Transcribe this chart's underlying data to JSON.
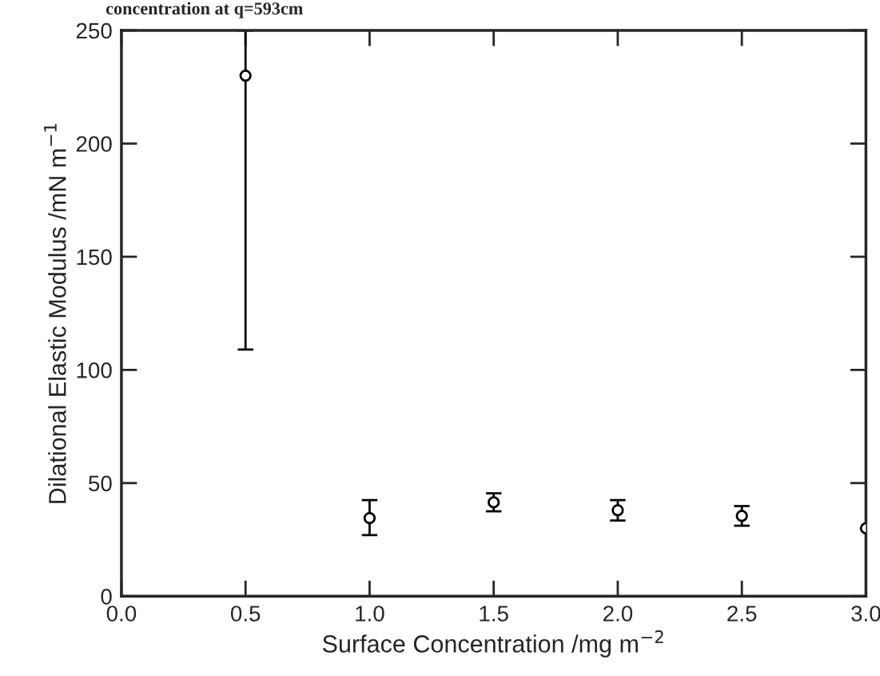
{
  "chart_data": {
    "type": "scatter",
    "title": "concentration at q=593cm",
    "xlabel": "Surface Concentration /mg m$^{−2}$",
    "ylabel": "Dilational Elastic Modulus /mN m$^{−1}$",
    "x": [
      0.5,
      1.0,
      1.5,
      2.0,
      2.5,
      3.0
    ],
    "series": [
      {
        "color": "#000000",
        "values": [
          230,
          34.5,
          41.5,
          38,
          35.5,
          30
        ],
        "errors": [
          [
            109,
            250
          ],
          [
            27,
            42.5
          ],
          4,
          4.5,
          4.3,
          null
        ]
      }
    ],
    "marker": "circle",
    "xlim": [
      0.0,
      3.0
    ],
    "xticks": [
      {
        "value": 0.0,
        "label": "0.0"
      },
      {
        "value": 0.5,
        "label": "0.5"
      },
      {
        "value": 1.0,
        "label": "1.0"
      },
      {
        "value": 1.5,
        "label": "1.5"
      },
      {
        "value": 2.0,
        "label": "2.0"
      },
      {
        "value": 2.5,
        "label": "2.5"
      },
      {
        "value": 3.0,
        "label": "3.0"
      }
    ],
    "ylim": [
      0,
      250
    ],
    "yticks": [
      0,
      50,
      100,
      150,
      200,
      250
    ],
    "grid": false
  }
}
